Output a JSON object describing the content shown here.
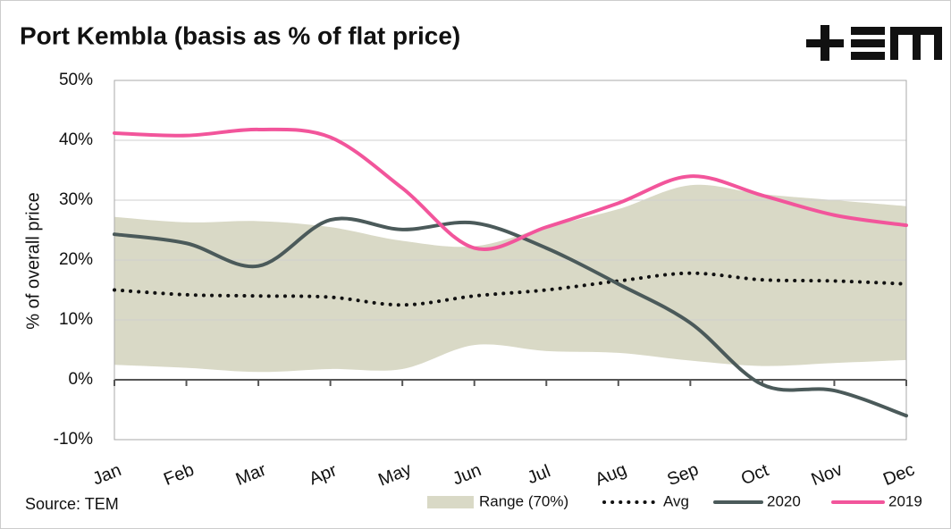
{
  "chart_data": {
    "type": "line",
    "title": "Port Kembla (basis as % of flat price)",
    "ylabel": "% of overall price",
    "source": "Source: TEM",
    "categories": [
      "Jan",
      "Feb",
      "Mar",
      "Apr",
      "May",
      "Jun",
      "Jul",
      "Aug",
      "Sep",
      "Oct",
      "Nov",
      "Dec"
    ],
    "range": {
      "name": "Range (70%)",
      "color": "#d9d9c6",
      "upper": [
        27.2,
        26.3,
        26.5,
        25.5,
        23.2,
        22.3,
        25.5,
        28.5,
        32.5,
        31,
        30,
        29
      ],
      "lower": [
        2.5,
        2,
        1.3,
        1.8,
        1.8,
        5.8,
        4.8,
        4.5,
        3.2,
        2.3,
        2.8,
        3.3
      ]
    },
    "series": [
      {
        "name": "Avg",
        "color": "#111111",
        "dotted": true,
        "values": [
          15,
          14.2,
          14,
          13.8,
          12.5,
          14,
          15,
          16.5,
          17.8,
          16.7,
          16.5,
          16
        ]
      },
      {
        "name": "2020",
        "color": "#4b5a5a",
        "values": [
          24.3,
          22.8,
          19,
          26.7,
          25.1,
          26.2,
          22,
          16,
          9.5,
          -0.8,
          -1.8,
          -6
        ]
      },
      {
        "name": "2019",
        "color": "#f2559b",
        "values": [
          41.2,
          40.8,
          41.8,
          40.5,
          32,
          22,
          25.5,
          29.5,
          34,
          30.8,
          27.5,
          25.8
        ]
      }
    ],
    "ylim": [
      -10,
      50
    ],
    "yticks": [
      {
        "value": -10,
        "label": "-10%"
      },
      {
        "value": 0,
        "label": "0%"
      },
      {
        "value": 10,
        "label": "10%"
      },
      {
        "value": 20,
        "label": "20%"
      },
      {
        "value": 30,
        "label": "30%"
      },
      {
        "value": 40,
        "label": "40%"
      },
      {
        "value": 50,
        "label": "50%"
      }
    ],
    "grid": true
  }
}
